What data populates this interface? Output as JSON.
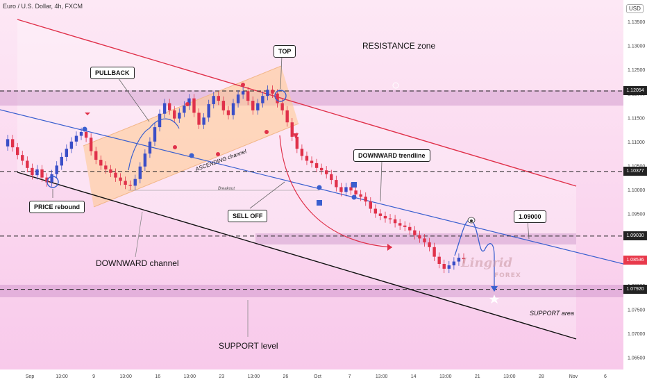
{
  "header": {
    "symbol_title": "Euro / U.S. Dollar, 4h, FXCM",
    "currency": "USD"
  },
  "chart_data": {
    "type": "candlestick",
    "title": "Euro / U.S. Dollar, 4h, FXCM",
    "x_tick_labels": [
      "Sep",
      "13:00",
      "9",
      "13:00",
      "16",
      "13:00",
      "23",
      "13:00",
      "26",
      "Oct",
      "7",
      "13:00",
      "14",
      "13:00",
      "21",
      "13:00",
      "28",
      "Nov",
      "6"
    ],
    "y_tick_labels": [
      "1.13500",
      "1.13000",
      "1.12500",
      "1.12000",
      "1.11500",
      "1.11000",
      "1.10500",
      "1.10000",
      "1.09500",
      "1.09000",
      "1.08500",
      "1.08000",
      "1.07500",
      "1.07000",
      "1.06500"
    ],
    "ylim": [
      1.0625,
      1.1395
    ],
    "price_path": [
      1.109,
      1.1105,
      1.1088,
      1.1072,
      1.106,
      1.1045,
      1.103,
      1.1042,
      1.1025,
      1.1015,
      1.1032,
      1.105,
      1.1068,
      1.1085,
      1.11,
      1.1112,
      1.112,
      1.1108,
      1.108,
      1.1062,
      1.105,
      1.1042,
      1.1035,
      1.1025,
      1.1018,
      1.101,
      1.1008,
      1.1022,
      1.1048,
      1.1075,
      1.11,
      1.113,
      1.1158,
      1.118,
      1.1165,
      1.1148,
      1.116,
      1.1175,
      1.119,
      1.116,
      1.1135,
      1.115,
      1.1178,
      1.1195,
      1.1185,
      1.1165,
      1.1155,
      1.118,
      1.1198,
      1.1205,
      1.1185,
      1.1165,
      1.118,
      1.1195,
      1.1208,
      1.12,
      1.118,
      1.1165,
      1.114,
      1.111,
      1.1085,
      1.107,
      1.106,
      1.1055,
      1.1045,
      1.104,
      1.1032,
      1.102,
      1.1005,
      1.0995,
      1.1005,
      1.0998,
      1.099,
      1.0985,
      1.0975,
      1.096,
      1.095,
      1.0945,
      1.094,
      1.0938,
      1.093,
      1.0925,
      1.0922,
      1.0915,
      1.0905,
      1.0898,
      1.089,
      1.088,
      1.086,
      1.0845,
      1.0835,
      1.0842,
      1.085,
      1.0858,
      1.0855
    ],
    "levels": [
      {
        "label": "1.12054",
        "value": 1.12054,
        "color": "#222222"
      },
      {
        "label": "1.10377",
        "value": 1.10377,
        "color": "#222222"
      },
      {
        "label": "1.09030",
        "value": 1.0903,
        "color": "#222222"
      },
      {
        "label": "1.08536",
        "value": 1.08536,
        "color": "#e8394b"
      },
      {
        "label": "1.07920",
        "value": 1.0792,
        "color": "#222222"
      }
    ],
    "up_color": "#3a4ec7",
    "down_color": "#e0314a"
  },
  "annotations": {
    "top": "TOP",
    "pullback": "PULLBACK",
    "price_rebound": "PRICE rebound",
    "sell_off": "SELL OFF",
    "downward_trendline": "DOWNWARD trendline",
    "target": "1.09000",
    "resistance_zone": "RESISTANCE zone",
    "ascending_channel": "ASCENDING channel",
    "breakout": "Breakout",
    "downward_channel": "DOWNWARD channel",
    "support_level": "SUPPORT level",
    "support_area": "SUPPORT area"
  },
  "watermark": {
    "brand": "Lingrid",
    "sub": "FOREX"
  }
}
